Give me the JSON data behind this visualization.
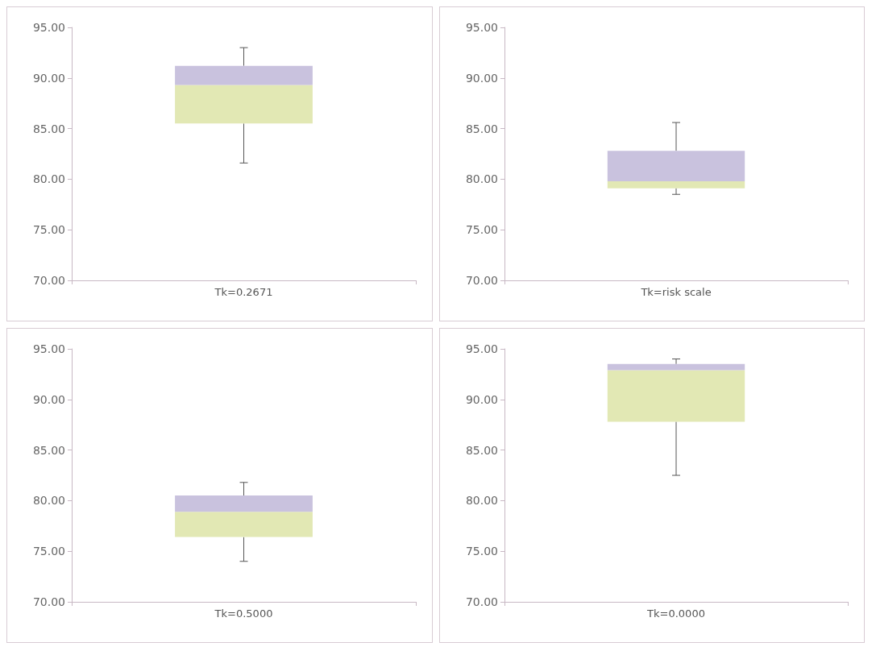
{
  "chart_data": [
    {
      "type": "box",
      "categories": [
        "Tk=0.2671"
      ],
      "series": [
        {
          "color": [
            "#e2e8b4",
            "#c9c2de"
          ],
          "boxes": [
            {
              "low": 81.6,
              "q1": 85.5,
              "median": 89.3,
              "q3": 91.2,
              "high": 93.0
            }
          ]
        }
      ],
      "ylim": [
        70,
        95
      ],
      "yticks": [
        {
          "value": 70,
          "label": "70.00"
        },
        {
          "value": 75,
          "label": "75.00"
        },
        {
          "value": 80,
          "label": "80.00"
        },
        {
          "value": 85,
          "label": "85.00"
        },
        {
          "value": 90,
          "label": "90.00"
        },
        {
          "value": 95,
          "label": "95.00"
        }
      ]
    },
    {
      "type": "box",
      "categories": [
        "Tk=risk scale"
      ],
      "series": [
        {
          "color": [
            "#e2e8b4",
            "#c9c2de"
          ],
          "boxes": [
            {
              "low": 78.5,
              "q1": 79.1,
              "median": 79.8,
              "q3": 82.8,
              "high": 85.6
            }
          ]
        }
      ],
      "ylim": [
        70,
        95
      ],
      "yticks": [
        {
          "value": 70,
          "label": "70.00"
        },
        {
          "value": 75,
          "label": "75.00"
        },
        {
          "value": 80,
          "label": "80.00"
        },
        {
          "value": 85,
          "label": "85.00"
        },
        {
          "value": 90,
          "label": "90.00"
        },
        {
          "value": 95,
          "label": "95.00"
        }
      ]
    },
    {
      "type": "box",
      "categories": [
        "Tk=0.5000"
      ],
      "series": [
        {
          "color": [
            "#e2e8b4",
            "#c9c2de"
          ],
          "boxes": [
            {
              "low": 74.0,
              "q1": 76.4,
              "median": 78.9,
              "q3": 80.5,
              "high": 81.8
            }
          ]
        }
      ],
      "ylim": [
        70,
        95
      ],
      "yticks": [
        {
          "value": 70,
          "label": "70.00"
        },
        {
          "value": 75,
          "label": "75.00"
        },
        {
          "value": 80,
          "label": "80.00"
        },
        {
          "value": 85,
          "label": "85.00"
        },
        {
          "value": 90,
          "label": "90.00"
        },
        {
          "value": 95,
          "label": "95.00"
        }
      ]
    },
    {
      "type": "box",
      "categories": [
        "Tk=0.0000"
      ],
      "series": [
        {
          "color": [
            "#e2e8b4",
            "#c9c2de"
          ],
          "boxes": [
            {
              "low": 82.5,
              "q1": 87.8,
              "median": 92.9,
              "q3": 93.5,
              "high": 94.0
            }
          ]
        }
      ],
      "ylim": [
        70,
        95
      ],
      "yticks": [
        {
          "value": 70,
          "label": "70.00"
        },
        {
          "value": 75,
          "label": "75.00"
        },
        {
          "value": 80,
          "label": "80.00"
        },
        {
          "value": 85,
          "label": "85.00"
        },
        {
          "value": 90,
          "label": "90.00"
        },
        {
          "value": 95,
          "label": "95.00"
        }
      ]
    }
  ]
}
